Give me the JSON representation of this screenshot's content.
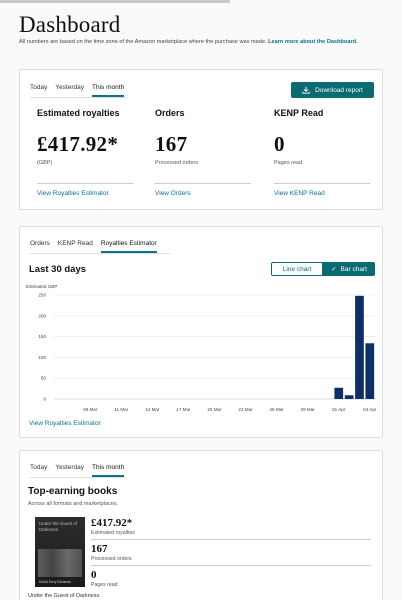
{
  "page": {
    "title": "Dashboard",
    "subtitle": "All numbers are based on the time zone of the Amazon marketplace where the purchase was made.",
    "learn_more": "Learn more about the Dashboard."
  },
  "summary": {
    "tabs": [
      "Today",
      "Yesterday",
      "This month"
    ],
    "active_tab": "This month",
    "download_label": "Download report",
    "metrics": [
      {
        "label": "Estimated royalties",
        "value": "£417.92*",
        "sub": "(GBP)",
        "link": "View Royalties Estimator"
      },
      {
        "label": "Orders",
        "value": "167",
        "sub": "Processed orders",
        "link": "View Orders"
      },
      {
        "label": "KENP Read",
        "value": "0",
        "sub": "Pages read",
        "link": "View KENP Read"
      }
    ]
  },
  "chart_card": {
    "tabs": [
      "Orders",
      "KENP Read",
      "Royalties Estimator"
    ],
    "active_tab": "Royalties Estimator",
    "title": "Last 30 days",
    "line_chart_label": "Line chart",
    "bar_chart_label": "Bar chart",
    "view_link": "View Royalties Estimator"
  },
  "chart_data": {
    "type": "bar",
    "ylabel": "Estimated GBP",
    "ylim": [
      0,
      250
    ],
    "yticks": [
      "0",
      "50",
      "100",
      "150",
      "200",
      "250"
    ],
    "xticks": [
      "08 Mar",
      "11 Mar",
      "14 Mar",
      "17 Mar",
      "20 Mar",
      "23 Mar",
      "26 Mar",
      "29 Mar",
      "01 Apr",
      "04 Apr"
    ],
    "bar_color": "#0b2f66",
    "grid": true,
    "days": 31,
    "first_tick_day": 3,
    "tick_step_days": 3,
    "bars": [
      {
        "day_index": 27,
        "value": 27
      },
      {
        "day_index": 28,
        "value": 9
      },
      {
        "day_index": 29,
        "value": 248
      },
      {
        "day_index": 30,
        "value": 134
      }
    ]
  },
  "top_card": {
    "tabs": [
      "Today",
      "Yesterday",
      "This month"
    ],
    "active_tab": "This month",
    "title": "Top-earning books",
    "subtitle": "Across all formats and marketplaces.",
    "book": {
      "cover_title": "Under the Guest of Darkness",
      "cover_author": "Dekull Eerry Edinavich",
      "name": "Under the Guest of Darkness",
      "royalties": "£417.92*",
      "royalties_label": "Estimated royalties",
      "orders": "167",
      "orders_label": "Processed orders",
      "kenp": "0",
      "kenp_label": "Pages read"
    }
  }
}
